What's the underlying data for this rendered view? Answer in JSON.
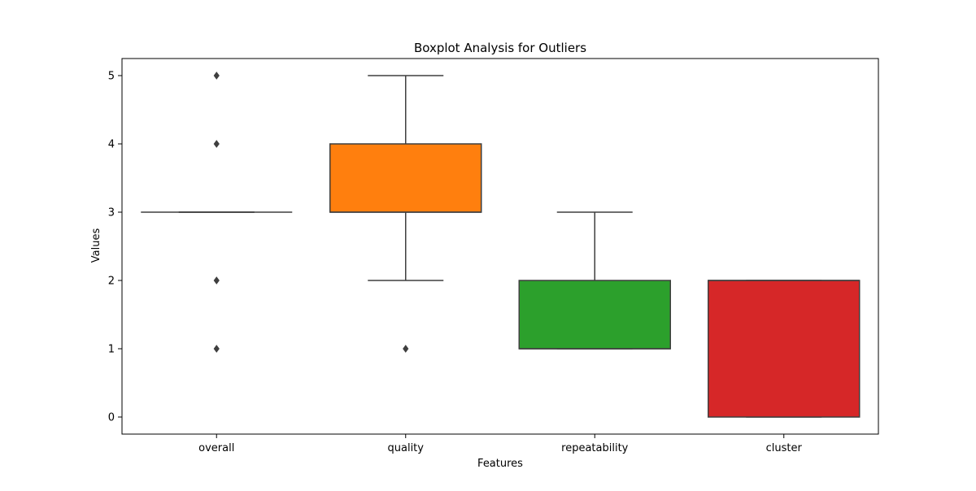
{
  "chart_data": {
    "type": "box",
    "title": "Boxplot Analysis for Outliers",
    "xlabel": "Features",
    "ylabel": "Values",
    "ylim": [
      -0.25,
      5.25
    ],
    "yticks": [
      0,
      1,
      2,
      3,
      4,
      5
    ],
    "categories": [
      "overall",
      "quality",
      "repeatability",
      "cluster"
    ],
    "boxes": [
      {
        "category": "overall",
        "color": "#1f77b4",
        "q1": 3,
        "median": 3,
        "q3": 3,
        "whisker_low": 3,
        "whisker_high": 3,
        "outliers": [
          1,
          2,
          4,
          5
        ]
      },
      {
        "category": "quality",
        "color": "#ff7f0e",
        "q1": 3,
        "median": 3,
        "q3": 4,
        "whisker_low": 2,
        "whisker_high": 5,
        "outliers": [
          1
        ]
      },
      {
        "category": "repeatability",
        "color": "#2ca02c",
        "q1": 1,
        "median": 1,
        "q3": 2,
        "whisker_low": 1,
        "whisker_high": 3,
        "outliers": []
      },
      {
        "category": "cluster",
        "color": "#d62728",
        "q1": 0,
        "median": 2,
        "q3": 2,
        "whisker_low": 0,
        "whisker_high": 2,
        "outliers": []
      }
    ],
    "grid": false,
    "legend": "none"
  }
}
